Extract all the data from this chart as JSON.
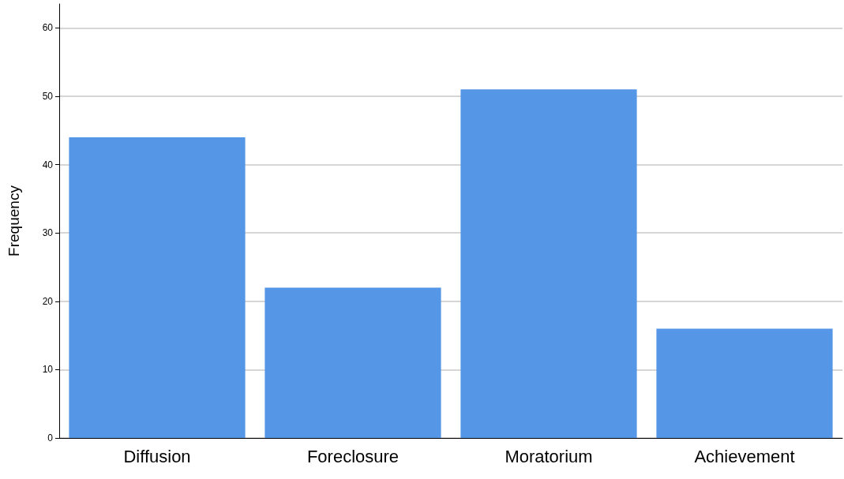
{
  "chart_data": {
    "type": "bar",
    "ylabel": "Frequency",
    "categories": [
      "Diffusion",
      "Foreclosure",
      "Moratorium",
      "Achievement"
    ],
    "values": [
      44,
      22,
      51,
      16
    ],
    "color": "#5596e6",
    "ylim": [
      0,
      63.5
    ],
    "yticks": [
      0,
      10,
      20,
      30,
      40,
      50,
      60
    ],
    "grid": "y"
  }
}
